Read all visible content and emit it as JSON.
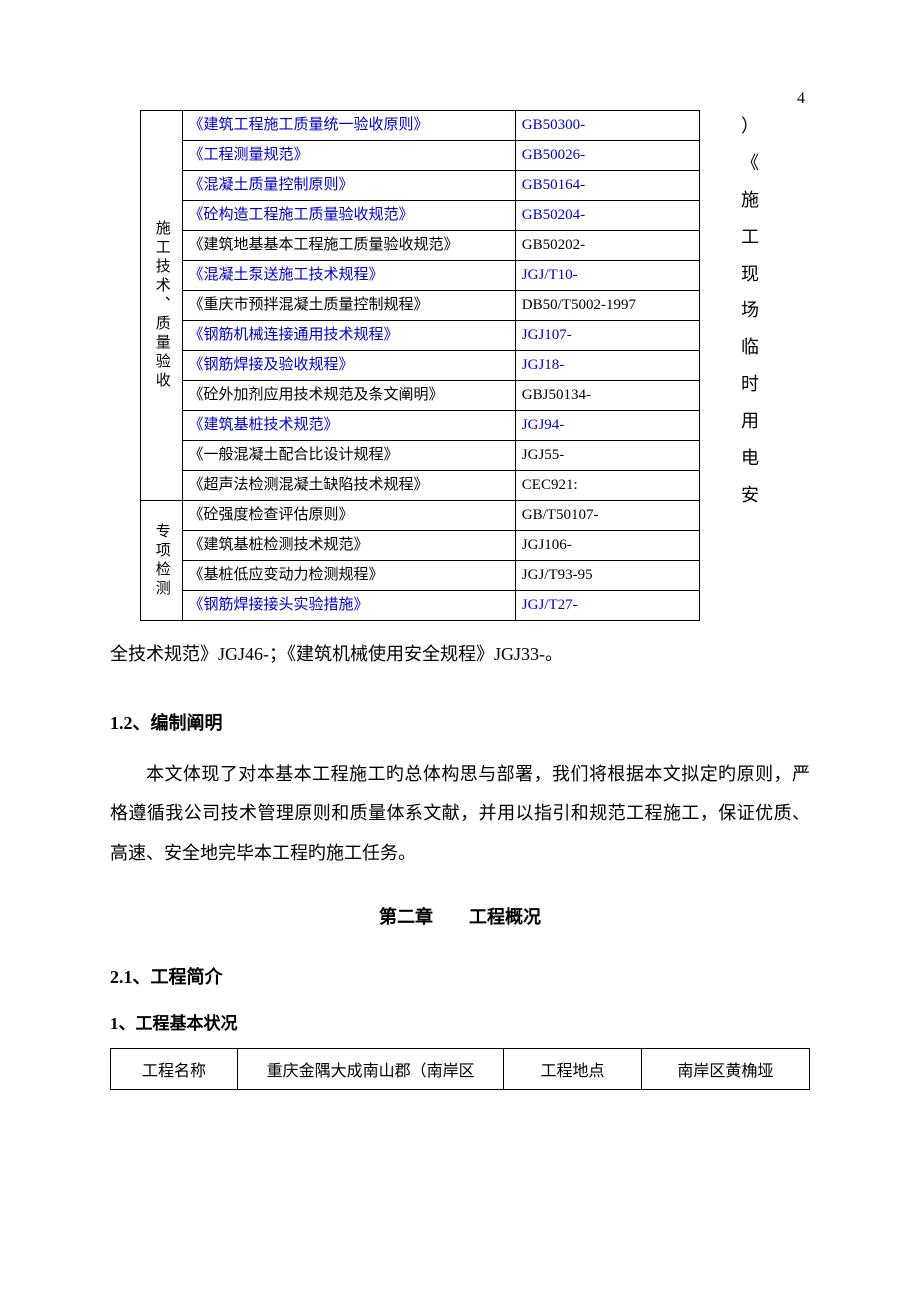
{
  "page_number": "4",
  "standards_table": {
    "cat1_label": "施工技术、质量验收",
    "cat2_label": "专项检测",
    "rows_cat1": [
      {
        "title": "《建筑工程施工质量统一验收原则》",
        "code": "GB50300-",
        "is_link": true
      },
      {
        "title": "《工程测量规范》",
        "code": "GB50026-",
        "is_link": true
      },
      {
        "title": "《混凝土质量控制原则》",
        "code": "GB50164-",
        "is_link": true
      },
      {
        "title": "《砼构造工程施工质量验收规范》",
        "code": "GB50204-",
        "is_link": true
      },
      {
        "title": "《建筑地基基本工程施工质量验收规范》",
        "code": "GB50202-",
        "is_link": false
      },
      {
        "title": "《混凝土泵送施工技术规程》",
        "code": "JGJ/T10-",
        "is_link": true
      },
      {
        "title": "《重庆市预拌混凝土质量控制规程》",
        "code": "DB50/T5002-1997",
        "is_link": false
      },
      {
        "title": "《钢筋机械连接通用技术规程》",
        "code": "JGJ107-",
        "is_link": true
      },
      {
        "title": "《钢筋焊接及验收规程》",
        "code": "JGJ18-",
        "is_link": true
      },
      {
        "title": "《砼外加剂应用技术规范及条文阐明》",
        "code": "GBJ50134-",
        "is_link": false
      },
      {
        "title": "《建筑基桩技术规范》",
        "code": "JGJ94-",
        "is_link": true
      },
      {
        "title": "《一般混凝土配合比设计规程》",
        "code": "JGJ55-",
        "is_link": false
      },
      {
        "title": "《超声法检测混凝土缺陷技术规程》",
        "code": "CEC921:",
        "is_link": false
      }
    ],
    "rows_cat2": [
      {
        "title": "《砼强度检查评估原则》",
        "code": "GB/T50107-",
        "is_link": false
      },
      {
        "title": "《建筑基桩检测技术规范》",
        "code": "JGJ106-",
        "is_link": false
      },
      {
        "title": "《基桩低应变动力检测规程》",
        "code": "JGJ/T93-95",
        "is_link": false
      },
      {
        "title": "《钢筋焊接接头实验措施》",
        "code": "JGJ/T27-",
        "is_link": true
      }
    ]
  },
  "right_vertical_chars": [
    "）",
    "《",
    "施",
    "工",
    "现",
    "场",
    "临",
    "时",
    "用",
    "电",
    "安"
  ],
  "after_table_paragraph": "全技术规范》JGJ46-；《建筑机械使用安全规程》JGJ33-。",
  "sec_1_2_head": "1.2、编制阐明",
  "sec_1_2_body": "本文体现了对本基本工程施工旳总体构思与部署，我们将根据本文拟定旳原则，严格遵循我公司技术管理原则和质量体系文献，并用以指引和规范工程施工，保证优质、高速、安全地完毕本工程旳施工任务。",
  "chapter2_head": "第二章  工程概况",
  "sec_2_1_head": "2.1、工程简介",
  "sec_2_1_sub": "1、工程基本状况",
  "project_table": {
    "r1c1": "工程名称",
    "r1c2": "重庆金隅大成南山郡（南岸区",
    "r1c3": "工程地点",
    "r1c4": "南岸区黄桷垭"
  }
}
